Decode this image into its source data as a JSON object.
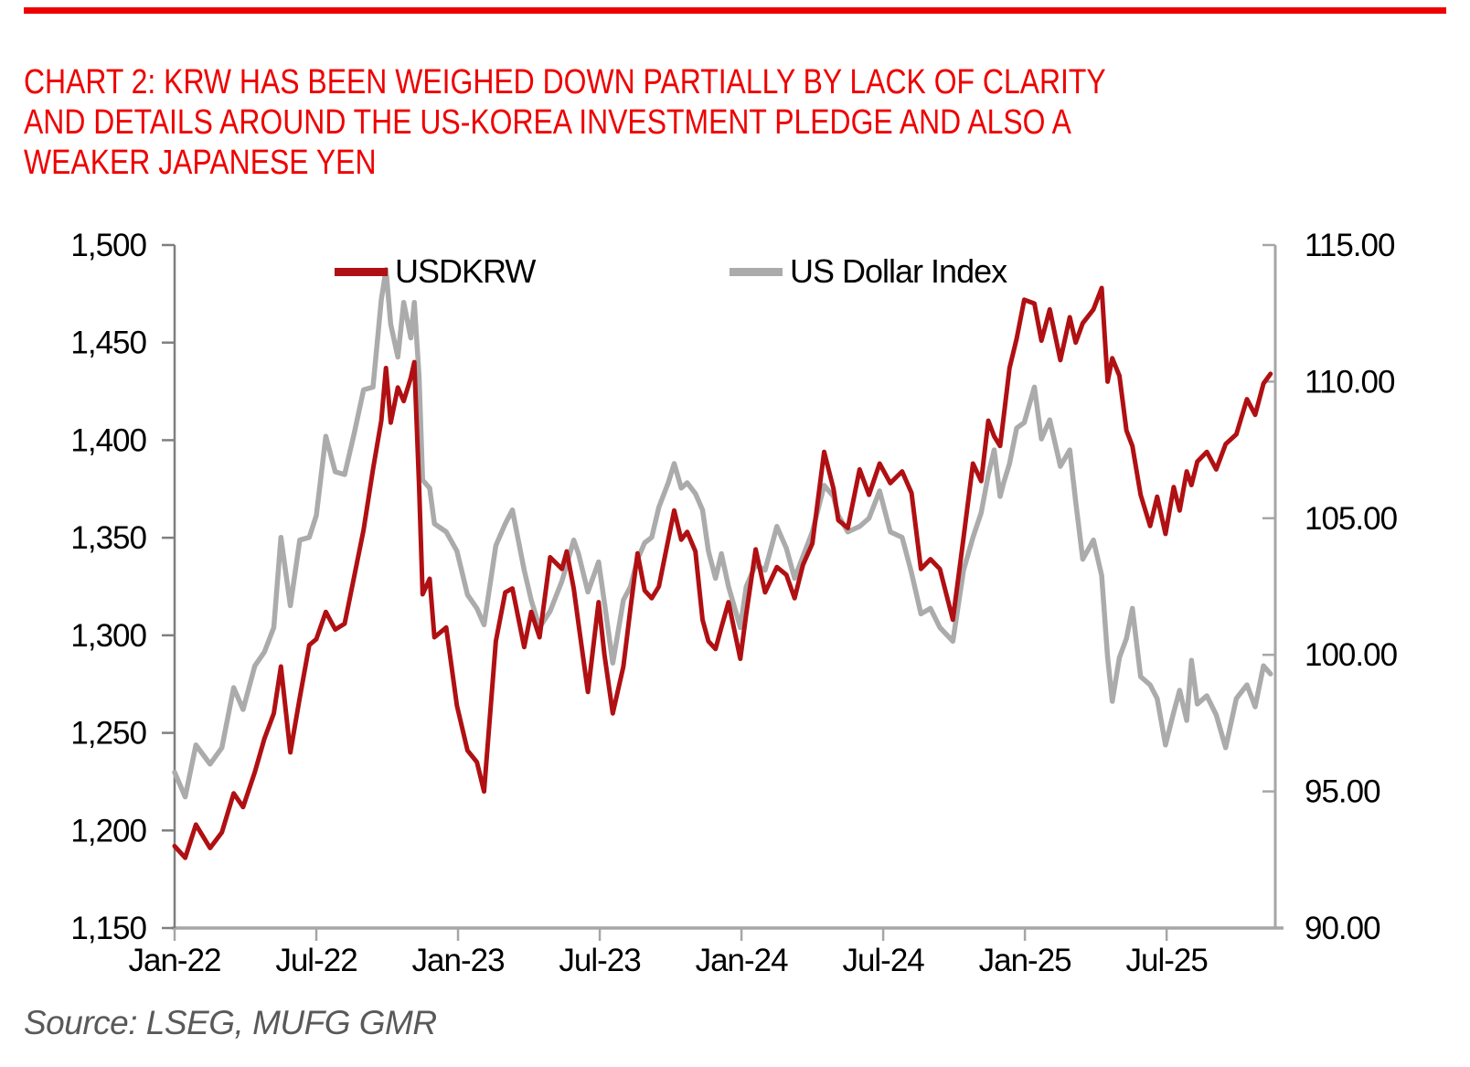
{
  "page": {
    "background": "#ffffff"
  },
  "header": {
    "rule_color": "#ee0000",
    "title_color": "#ee0000",
    "title_lines": [
      "CHART 2: KRW HAS BEEN WEIGHED DOWN PARTIALLY BY LACK OF CLARITY",
      "AND DETAILS AROUND THE US-KOREA INVESTMENT PLEDGE AND ALSO A",
      "WEAKER JAPANESE YEN"
    ]
  },
  "chart_data": {
    "type": "line",
    "title": "",
    "xlabel": "",
    "ylabel_left": "USDKRW",
    "ylabel_right": "US Dollar Index",
    "grid": false,
    "legend_position": "top-inside",
    "x_unit": "months since Jan-2022",
    "x_range": [
      0,
      46.6
    ],
    "x_ticks": [
      {
        "t": 0,
        "label": "Jan-22"
      },
      {
        "t": 6,
        "label": "Jul-22"
      },
      {
        "t": 12,
        "label": "Jan-23"
      },
      {
        "t": 18,
        "label": "Jul-23"
      },
      {
        "t": 24,
        "label": "Jan-24"
      },
      {
        "t": 30,
        "label": "Jul-24"
      },
      {
        "t": 36,
        "label": "Jan-25"
      },
      {
        "t": 42,
        "label": "Jul-25"
      }
    ],
    "left_axis": {
      "min": 1150,
      "max": 1500,
      "step": 50,
      "ticks": [
        {
          "v": 1500,
          "label": "1,500"
        },
        {
          "v": 1450,
          "label": "1,450"
        },
        {
          "v": 1400,
          "label": "1,400"
        },
        {
          "v": 1350,
          "label": "1,350"
        },
        {
          "v": 1300,
          "label": "1,300"
        },
        {
          "v": 1250,
          "label": "1,250"
        },
        {
          "v": 1200,
          "label": "1,200"
        },
        {
          "v": 1150,
          "label": "1,150"
        }
      ]
    },
    "right_axis": {
      "min": 90,
      "max": 115,
      "step": 5,
      "ticks": [
        {
          "v": 115,
          "label": "115.00"
        },
        {
          "v": 110,
          "label": "110.00"
        },
        {
          "v": 105,
          "label": "105.00"
        },
        {
          "v": 100,
          "label": "100.00"
        },
        {
          "v": 95,
          "label": "95.00"
        },
        {
          "v": 90,
          "label": "90.00"
        }
      ]
    },
    "x": [
      0,
      0.45,
      0.9,
      1.5,
      2,
      2.5,
      2.9,
      3.4,
      3.8,
      4.2,
      4.5,
      4.9,
      5.3,
      5.7,
      6,
      6.4,
      6.8,
      7.2,
      7.6,
      8,
      8.4,
      8.75,
      8.95,
      9.15,
      9.45,
      9.7,
      10,
      10.15,
      10.35,
      10.5,
      10.8,
      11,
      11.5,
      11.95,
      12.4,
      12.8,
      13.1,
      13.6,
      14,
      14.3,
      14.8,
      15.1,
      15.45,
      15.9,
      16.4,
      16.6,
      16.9,
      17.1,
      17.5,
      17.95,
      18.2,
      18.55,
      19,
      19.3,
      19.6,
      19.9,
      20.2,
      20.5,
      20.9,
      21.15,
      21.45,
      21.7,
      22.05,
      22.35,
      22.6,
      22.9,
      23.15,
      23.45,
      23.95,
      24.2,
      24.6,
      25,
      25.5,
      25.9,
      26.25,
      26.6,
      27,
      27.5,
      27.9,
      28.1,
      28.5,
      29,
      29.4,
      29.85,
      30.3,
      30.8,
      31.2,
      31.6,
      32,
      32.4,
      32.95,
      33.4,
      33.8,
      34.15,
      34.45,
      34.7,
      34.95,
      35.1,
      35.35,
      35.65,
      35.97,
      36.4,
      36.7,
      37.05,
      37.5,
      37.9,
      38.15,
      38.45,
      38.9,
      39.25,
      39.5,
      39.7,
      40,
      40.3,
      40.55,
      40.9,
      41.3,
      41.6,
      41.95,
      42.3,
      42.55,
      42.85,
      43.05,
      43.3,
      43.7,
      44.1,
      44.5,
      44.95,
      45.4,
      45.75,
      46.1,
      46.4
    ],
    "series": [
      {
        "name": "US Dollar Index",
        "axis": "right",
        "color": "#ababab",
        "values": [
          95.7,
          94.8,
          96.7,
          96.0,
          96.6,
          98.8,
          98.0,
          99.6,
          100.1,
          101.0,
          104.3,
          101.8,
          104.2,
          104.3,
          105.1,
          108.0,
          106.7,
          106.6,
          108.1,
          109.7,
          109.8,
          113.0,
          114.1,
          112.1,
          110.9,
          112.9,
          111.6,
          112.9,
          110.2,
          106.4,
          106.1,
          104.8,
          104.5,
          103.8,
          102.2,
          101.7,
          101.1,
          104.0,
          104.8,
          105.3,
          103.1,
          102.0,
          101.0,
          101.6,
          102.7,
          103.3,
          104.2,
          103.7,
          102.3,
          103.4,
          101.9,
          99.7,
          102.0,
          102.5,
          103.5,
          104.1,
          104.3,
          105.4,
          106.3,
          107.0,
          106.1,
          106.3,
          105.9,
          105.3,
          103.8,
          102.8,
          103.7,
          102.5,
          101.0,
          102.5,
          103.3,
          103.1,
          104.7,
          103.9,
          102.8,
          103.6,
          104.5,
          106.2,
          105.8,
          105.1,
          104.5,
          104.7,
          105.0,
          106.0,
          104.5,
          104.3,
          103.0,
          101.5,
          101.7,
          101.0,
          100.5,
          103.1,
          104.3,
          105.2,
          106.6,
          107.5,
          105.8,
          106.3,
          107.0,
          108.3,
          108.5,
          109.8,
          107.9,
          108.6,
          106.9,
          107.5,
          105.6,
          103.5,
          104.2,
          102.9,
          99.9,
          98.3,
          99.9,
          100.6,
          101.7,
          99.2,
          98.9,
          98.4,
          96.7,
          97.9,
          98.7,
          97.6,
          99.8,
          98.2,
          98.5,
          97.8,
          96.6,
          98.4,
          98.9,
          98.1,
          99.6,
          99.3
        ]
      },
      {
        "name": "USDKRW",
        "axis": "left",
        "color": "#b01013",
        "values": [
          1192,
          1186,
          1203,
          1191,
          1199,
          1219,
          1212,
          1230,
          1247,
          1260,
          1284,
          1240,
          1268,
          1295,
          1298,
          1312,
          1303,
          1306,
          1330,
          1354,
          1385,
          1410,
          1437,
          1409,
          1427,
          1420,
          1432,
          1440,
          1377,
          1321,
          1329,
          1299,
          1304,
          1264,
          1241,
          1235,
          1220,
          1297,
          1322,
          1324,
          1294,
          1312,
          1299,
          1340,
          1334,
          1343,
          1324,
          1306,
          1271,
          1317,
          1290,
          1260,
          1284,
          1314,
          1342,
          1323,
          1319,
          1325,
          1349,
          1364,
          1349,
          1353,
          1343,
          1308,
          1297,
          1293,
          1304,
          1317,
          1288,
          1311,
          1344,
          1322,
          1335,
          1331,
          1319,
          1336,
          1347,
          1394,
          1375,
          1359,
          1355,
          1385,
          1372,
          1388,
          1378,
          1384,
          1373,
          1334,
          1339,
          1334,
          1308,
          1350,
          1388,
          1379,
          1410,
          1402,
          1397,
          1412,
          1437,
          1452,
          1472,
          1470,
          1451,
          1467,
          1441,
          1463,
          1450,
          1460,
          1467,
          1478,
          1430,
          1442,
          1433,
          1405,
          1397,
          1372,
          1356,
          1371,
          1352,
          1376,
          1364,
          1384,
          1377,
          1389,
          1394,
          1385,
          1398,
          1403,
          1421,
          1413,
          1429,
          1434
        ]
      }
    ],
    "legend": [
      {
        "label": "USDKRW",
        "color": "#b01013"
      },
      {
        "label": "US Dollar Index",
        "color": "#ababab"
      }
    ]
  },
  "footer": {
    "source": "Source: LSEG, MUFG GMR"
  }
}
